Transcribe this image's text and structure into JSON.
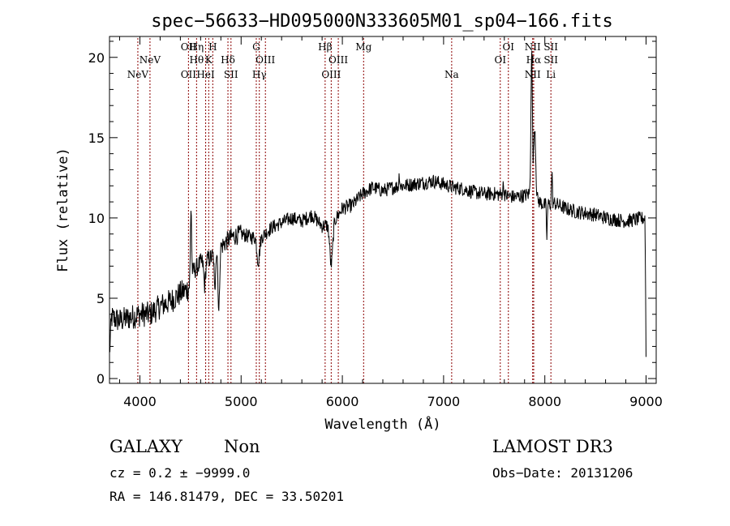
{
  "chart_data": {
    "type": "line",
    "title": "spec−56633−HD095000N333605M01_sp04−166.fits",
    "xlabel": "Wavelength (Å)",
    "ylabel": "Flux (relative)",
    "xlim": [
      3700,
      9100
    ],
    "ylim": [
      -0.3,
      21.3
    ],
    "x_ticks": [
      4000,
      5000,
      6000,
      7000,
      8000,
      9000
    ],
    "y_ticks": [
      0,
      5,
      10,
      15,
      20
    ],
    "line_color": "#8b0000",
    "spectrum_color": "#000000",
    "spectrum_anchors": [
      [
        3700,
        1.5
      ],
      [
        3720,
        3.8
      ],
      [
        3800,
        3.6
      ],
      [
        3900,
        3.8
      ],
      [
        4000,
        4.0
      ],
      [
        4100,
        4.0
      ],
      [
        4200,
        4.5
      ],
      [
        4300,
        4.8
      ],
      [
        4400,
        5.3
      ],
      [
        4480,
        5.6
      ],
      [
        4520,
        6.6
      ],
      [
        4600,
        7.2
      ],
      [
        4700,
        7.5
      ],
      [
        4800,
        8.2
      ],
      [
        4900,
        8.8
      ],
      [
        5000,
        9.0
      ],
      [
        5100,
        8.8
      ],
      [
        5200,
        8.8
      ],
      [
        5300,
        9.4
      ],
      [
        5400,
        9.7
      ],
      [
        5500,
        10.0
      ],
      [
        5600,
        9.8
      ],
      [
        5700,
        10.2
      ],
      [
        5800,
        9.5
      ],
      [
        5900,
        9.6
      ],
      [
        6000,
        10.6
      ],
      [
        6100,
        10.8
      ],
      [
        6200,
        11.5
      ],
      [
        6300,
        11.9
      ],
      [
        6400,
        11.7
      ],
      [
        6500,
        11.9
      ],
      [
        6600,
        12.0
      ],
      [
        6700,
        12.1
      ],
      [
        6800,
        12.2
      ],
      [
        6900,
        12.3
      ],
      [
        7000,
        12.1
      ],
      [
        7100,
        11.9
      ],
      [
        7200,
        11.8
      ],
      [
        7300,
        11.6
      ],
      [
        7400,
        11.5
      ],
      [
        7500,
        11.5
      ],
      [
        7600,
        11.4
      ],
      [
        7700,
        11.3
      ],
      [
        7800,
        11.4
      ],
      [
        7850,
        11.5
      ],
      [
        7950,
        11.0
      ],
      [
        8000,
        10.8
      ],
      [
        8100,
        10.9
      ],
      [
        8200,
        10.6
      ],
      [
        8300,
        10.4
      ],
      [
        8400,
        10.3
      ],
      [
        8500,
        10.2
      ],
      [
        8600,
        10.0
      ],
      [
        8700,
        9.9
      ],
      [
        8800,
        9.8
      ],
      [
        8900,
        9.9
      ],
      [
        8990,
        10.0
      ],
      [
        9000,
        1.5
      ]
    ],
    "spectrum_features": [
      {
        "center": 4505,
        "width": 8,
        "depth": 4.5
      },
      {
        "center": 4640,
        "width": 12,
        "depth": -1.5
      },
      {
        "center": 4780,
        "width": 10,
        "depth": -4.0
      },
      {
        "center": 4740,
        "width": 8,
        "depth": -2.5
      },
      {
        "center": 5170,
        "width": 18,
        "depth": -1.5
      },
      {
        "center": 5890,
        "width": 20,
        "depth": -2.5
      },
      {
        "center": 6563,
        "width": 6,
        "depth": 0.8
      },
      {
        "center": 7590,
        "width": 10,
        "depth": 0.6
      },
      {
        "center": 7870,
        "width": 10,
        "depth": 9.0
      },
      {
        "center": 7900,
        "width": 14,
        "depth": 4.5
      },
      {
        "center": 8020,
        "width": 6,
        "depth": -2.0
      },
      {
        "center": 8070,
        "width": 6,
        "depth": 2.0
      }
    ],
    "lines": [
      {
        "wave": 3980,
        "label": "NeV",
        "row": 2
      },
      {
        "wave": 4100,
        "label": "NeV",
        "row": 1
      },
      {
        "wave": 4480,
        "label": "OII",
        "row": 0
      },
      {
        "wave": 4480,
        "label": "OII",
        "row": 2
      },
      {
        "wave": 4560,
        "label": "Hη",
        "row": 0
      },
      {
        "wave": 4560,
        "label": "Hθ",
        "row": 1
      },
      {
        "wave": 4650,
        "label": "HeI",
        "row": 2
      },
      {
        "wave": 4720,
        "label": "H",
        "row": 0
      },
      {
        "wave": 4680,
        "label": "K",
        "row": 1
      },
      {
        "wave": 4870,
        "label": "Hδ",
        "row": 1
      },
      {
        "wave": 4900,
        "label": "SII",
        "row": 2
      },
      {
        "wave": 5150,
        "label": "G",
        "row": 0
      },
      {
        "wave": 5240,
        "label": "OIII",
        "row": 1
      },
      {
        "wave": 5180,
        "label": "Hγ",
        "row": 2
      },
      {
        "wave": 5830,
        "label": "Hβ",
        "row": 0
      },
      {
        "wave": 5960,
        "label": "OIII",
        "row": 1
      },
      {
        "wave": 5890,
        "label": "OIII",
        "row": 2
      },
      {
        "wave": 6210,
        "label": "Mg",
        "row": 0
      },
      {
        "wave": 7080,
        "label": "Na",
        "row": 2
      },
      {
        "wave": 7640,
        "label": "OI",
        "row": 0
      },
      {
        "wave": 7560,
        "label": "OI",
        "row": 1
      },
      {
        "wave": 7880,
        "label": "NII",
        "row": 0
      },
      {
        "wave": 7890,
        "label": "Hα",
        "row": 1
      },
      {
        "wave": 7880,
        "label": "NII",
        "row": 2
      },
      {
        "wave": 8060,
        "label": "SII",
        "row": 0
      },
      {
        "wave": 8060,
        "label": "SII",
        "row": 1
      },
      {
        "wave": 8060,
        "label": "Li",
        "row": 2
      }
    ]
  },
  "info": {
    "class_label": "GALAXY",
    "subclass_label": "Non",
    "cz_line": "cz = 0.2 ± −9999.0",
    "radec_line": "RA = 146.81479, DEC =  33.50201",
    "survey_label": "LAMOST DR3",
    "obs_date_line": "Obs−Date: 20131206"
  }
}
